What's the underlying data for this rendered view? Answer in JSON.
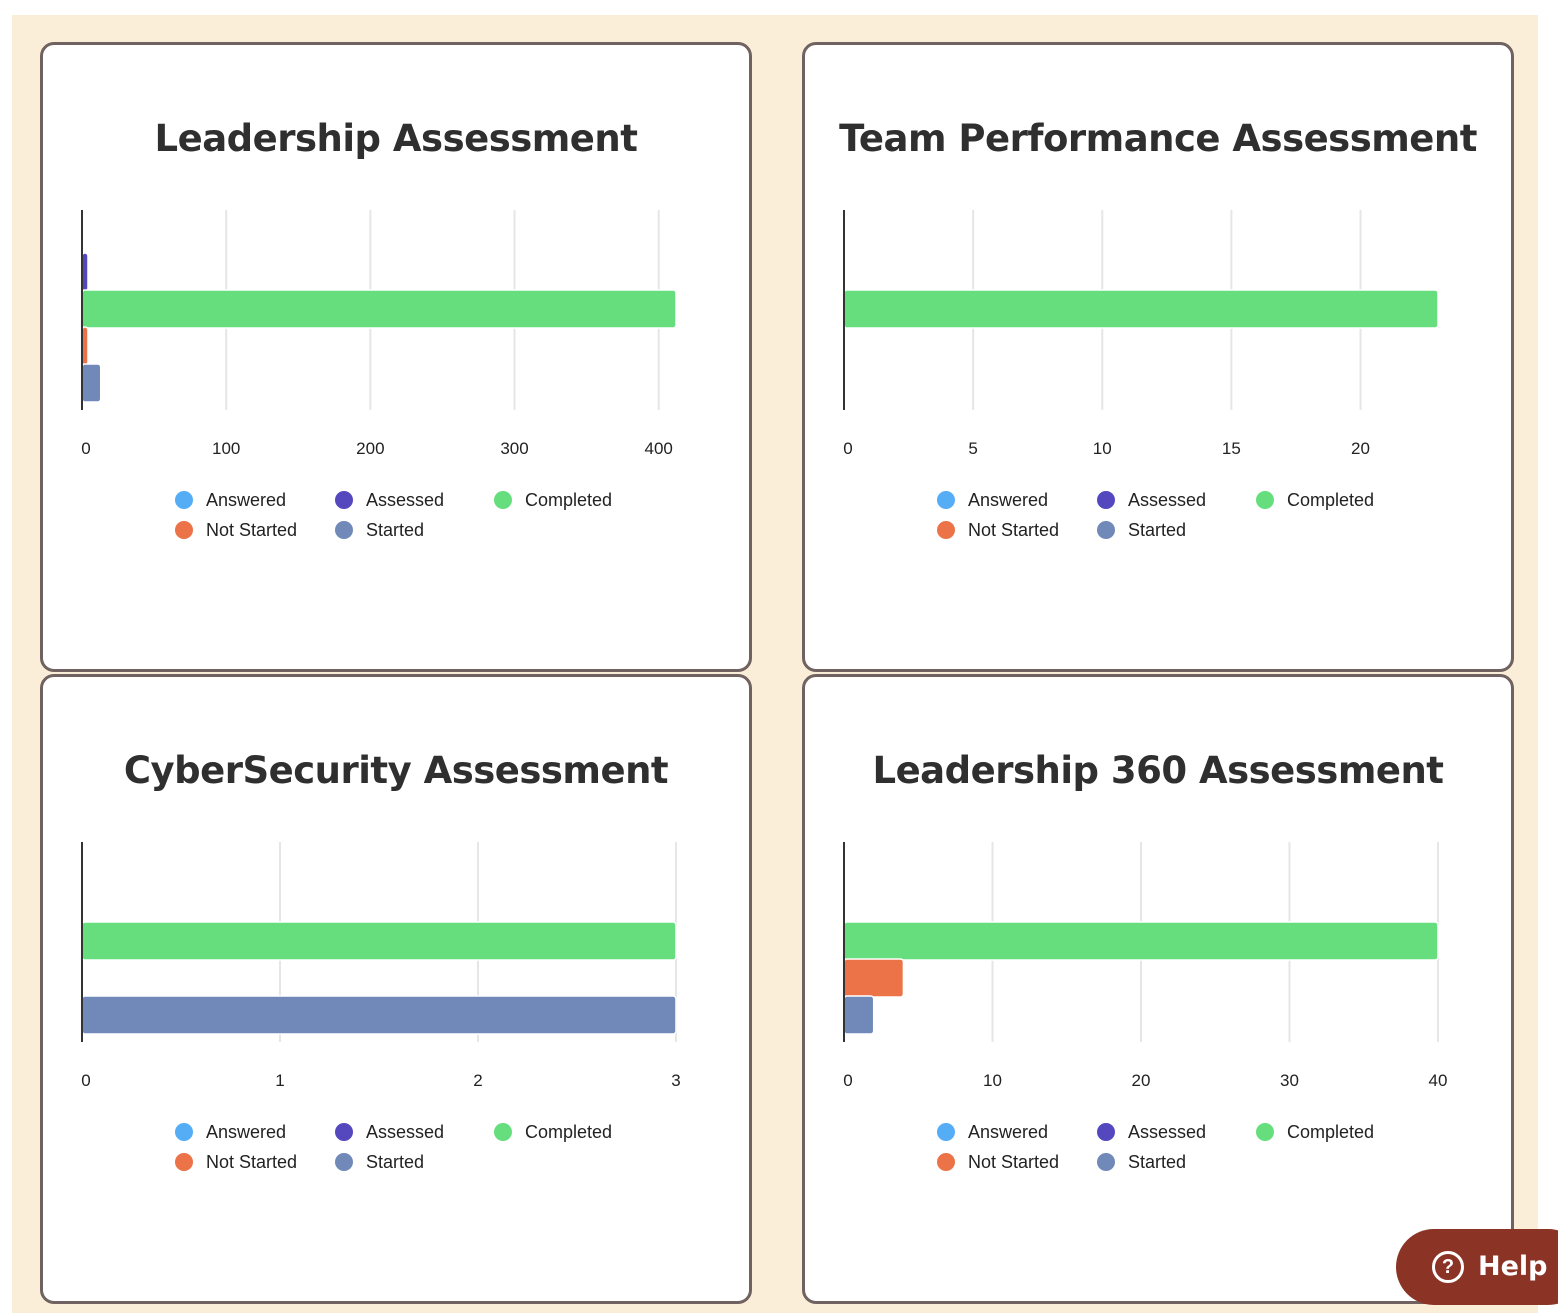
{
  "colors": {
    "Answered": "#55adf5",
    "Assessed": "#5548bf",
    "Completed": "#67de7d",
    "Not Started": "#ec7248",
    "Started": "#7089b9"
  },
  "legend": [
    "Answered",
    "Assessed",
    "Completed",
    "Not Started",
    "Started"
  ],
  "chart_data": [
    {
      "type": "bar",
      "orientation": "horizontal",
      "title": "Leadership Assessment",
      "categories": [
        "Answered",
        "Assessed",
        "Completed",
        "Not Started",
        "Started"
      ],
      "values": [
        0,
        4,
        412,
        4,
        13
      ],
      "xlim": [
        0,
        412
      ],
      "ticks": [
        "0",
        "100",
        "200",
        "300",
        "400"
      ],
      "tick_values": [
        0,
        100,
        200,
        300,
        400
      ],
      "grid": true,
      "legend_placement": "bottom"
    },
    {
      "type": "bar",
      "orientation": "horizontal",
      "title": "Team Performance Assessment",
      "categories": [
        "Answered",
        "Assessed",
        "Completed",
        "Not Started",
        "Started"
      ],
      "values": [
        0,
        0,
        23,
        0,
        0
      ],
      "xlim": [
        0,
        23
      ],
      "ticks": [
        "0",
        "5",
        "10",
        "15",
        "20"
      ],
      "tick_values": [
        0,
        5,
        10,
        15,
        20
      ],
      "grid": true,
      "legend_placement": "bottom"
    },
    {
      "type": "bar",
      "orientation": "horizontal",
      "title": "CyberSecurity Assessment",
      "categories": [
        "Answered",
        "Assessed",
        "Completed",
        "Not Started",
        "Started"
      ],
      "values": [
        0,
        0,
        3,
        0,
        3
      ],
      "xlim": [
        0,
        3
      ],
      "ticks": [
        "0",
        "1",
        "2",
        "3"
      ],
      "tick_values": [
        0,
        1,
        2,
        3
      ],
      "grid": true,
      "legend_placement": "bottom"
    },
    {
      "type": "bar",
      "orientation": "horizontal",
      "title": "Leadership 360 Assessment",
      "categories": [
        "Answered",
        "Assessed",
        "Completed",
        "Not Started",
        "Started"
      ],
      "values": [
        0,
        0,
        40,
        4,
        2
      ],
      "xlim": [
        0,
        40
      ],
      "ticks": [
        "0",
        "10",
        "20",
        "30",
        "40"
      ],
      "tick_values": [
        0,
        10,
        20,
        30,
        40
      ],
      "grid": true,
      "legend_placement": "bottom"
    }
  ],
  "help": {
    "label": "Help",
    "icon": "question-circle-icon"
  }
}
